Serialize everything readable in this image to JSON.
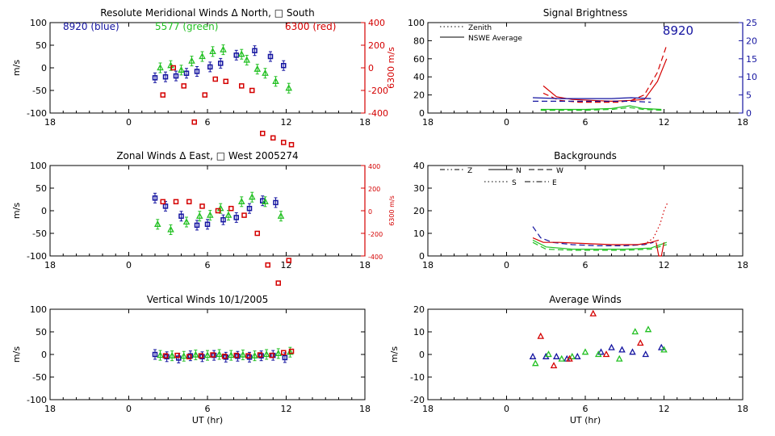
{
  "chart_data": [
    {
      "id": "merid",
      "type": "scatter",
      "title": "Resolute Meridional Winds Δ North, □ South",
      "ylabel": "m/s",
      "xlabel": "",
      "xlim": [
        18,
        42
      ],
      "ylim": [
        -100,
        100
      ],
      "xticks": [
        "18",
        "0",
        "6",
        "12",
        "18"
      ],
      "yticks": [
        "100",
        "50",
        "0",
        "-50",
        "-100"
      ],
      "right_axis": {
        "label": "6300 m/s",
        "color": "#d40000",
        "ylim": [
          -400,
          400
        ],
        "ticks": [
          "400",
          "200",
          "0",
          "-200",
          "-400"
        ]
      },
      "annotations": [
        {
          "text": "8920  (blue)",
          "color": "#1414a0"
        },
        {
          "text": "5577 (green)",
          "color": "#22c022"
        },
        {
          "text": "6300 (red)",
          "color": "#d40000"
        }
      ],
      "series": [
        {
          "color": "#1414a0",
          "marker": "square",
          "errorbars": true,
          "x": [
            26.0,
            26.8,
            27.6,
            28.4,
            29.2,
            30.2,
            31.0,
            32.2,
            33.6,
            34.8,
            35.8
          ],
          "y": [
            -22,
            -20,
            -18,
            -12,
            -8,
            2,
            10,
            28,
            38,
            25,
            5
          ]
        },
        {
          "color": "#22c022",
          "marker": "triangle",
          "errorbars": true,
          "x": [
            26.4,
            27.2,
            28.0,
            28.8,
            29.6,
            30.4,
            31.2,
            32.6,
            33.0,
            33.8,
            34.4,
            35.2,
            36.2
          ],
          "y": [
            0,
            5,
            -5,
            15,
            25,
            36,
            40,
            30,
            17,
            -3,
            -12,
            -30,
            -45
          ]
        },
        {
          "color": "#d40000",
          "marker": "square",
          "errorbars": false,
          "x": [
            26.6,
            27.4,
            28.2,
            29.0,
            29.8,
            30.6,
            31.4,
            32.6,
            33.4,
            34.2,
            35.0,
            35.8,
            36.4
          ],
          "y": [
            -60,
            0,
            -40,
            -120,
            -60,
            -25,
            -30,
            -40,
            -50,
            -145,
            -155,
            -165,
            -170
          ]
        }
      ]
    },
    {
      "id": "zonal",
      "type": "scatter",
      "title": "Zonal Winds Δ East, □ West 2005274",
      "ylabel": "m/s",
      "xlabel": "",
      "xlim": [
        18,
        42
      ],
      "ylim": [
        -100,
        100
      ],
      "xticks": [
        "18",
        "0",
        "6",
        "12",
        "18"
      ],
      "yticks": [
        "100",
        "50",
        "0",
        "-50",
        "-100"
      ],
      "right_axis": {
        "label": "6300 m/s",
        "color": "#d40000",
        "ylim": [
          -400,
          400
        ],
        "ticks": [
          "400",
          "200",
          "0",
          "-200",
          "-400"
        ]
      },
      "series": [
        {
          "color": "#1414a0",
          "marker": "square",
          "errorbars": true,
          "x": [
            26.0,
            26.8,
            28.0,
            29.2,
            30.0,
            31.2,
            32.2,
            33.2,
            34.2,
            35.2
          ],
          "y": [
            28,
            10,
            -12,
            -32,
            -30,
            -20,
            -15,
            5,
            22,
            18
          ]
        },
        {
          "color": "#22c022",
          "marker": "triangle",
          "errorbars": true,
          "x": [
            26.2,
            27.2,
            28.4,
            29.4,
            30.2,
            31.0,
            31.6,
            32.6,
            33.4,
            34.4,
            35.6
          ],
          "y": [
            -30,
            -42,
            -25,
            -12,
            -10,
            5,
            -10,
            20,
            30,
            20,
            -12
          ]
        },
        {
          "color": "#d40000",
          "marker": "square",
          "errorbars": false,
          "x": [
            26.6,
            27.6,
            28.6,
            29.6,
            30.8,
            31.8,
            32.8,
            33.8,
            34.6,
            35.4,
            36.2
          ],
          "y": [
            20,
            20,
            20,
            10,
            0,
            5,
            -10,
            -50,
            -120,
            -160,
            -110
          ]
        }
      ]
    },
    {
      "id": "vert",
      "type": "scatter",
      "title": "Vertical Winds 10/1/2005",
      "ylabel": "m/s",
      "xlabel": "UT (hr)",
      "xlim": [
        18,
        42
      ],
      "ylim": [
        -100,
        100
      ],
      "xticks": [
        "18",
        "0",
        "6",
        "12",
        "18"
      ],
      "yticks": [
        "100",
        "50",
        "0",
        "-50",
        "-100"
      ],
      "series": [
        {
          "color": "#1414a0",
          "marker": "square",
          "errorbars": true,
          "x": [
            26.0,
            26.9,
            27.8,
            28.7,
            29.6,
            30.5,
            31.4,
            32.3,
            33.2,
            34.1,
            35.0,
            35.9
          ],
          "y": [
            0,
            -5,
            -8,
            -3,
            -5,
            -2,
            -6,
            -4,
            -6,
            -3,
            -2,
            -7
          ]
        },
        {
          "color": "#22c022",
          "marker": "triangle",
          "errorbars": true,
          "x": [
            26.4,
            27.3,
            28.2,
            29.1,
            30.0,
            30.9,
            31.8,
            32.7,
            33.6,
            34.5,
            35.4,
            36.3
          ],
          "y": [
            -2,
            -3,
            -4,
            -1,
            -2,
            0,
            -2,
            -1,
            -3,
            0,
            2,
            5
          ]
        },
        {
          "color": "#d40000",
          "marker": "square",
          "errorbars": false,
          "x": [
            26.8,
            27.7,
            28.6,
            29.5,
            30.4,
            31.3,
            32.2,
            33.1,
            34.0,
            34.9,
            35.8,
            36.4
          ],
          "y": [
            -3,
            -2,
            -5,
            -3,
            -1,
            -4,
            -2,
            -3,
            -1,
            -2,
            4,
            7
          ]
        }
      ]
    },
    {
      "id": "bright",
      "type": "line",
      "title": "Signal Brightness",
      "ylabel": "",
      "xlabel": "",
      "xlim": [
        18,
        42
      ],
      "ylim": [
        0,
        100
      ],
      "xticks": [
        "18",
        "0",
        "6",
        "12",
        "18"
      ],
      "yticks": [
        "100",
        "80",
        "60",
        "40",
        "20",
        "0"
      ],
      "right_axis": {
        "label": "",
        "color": "#1414a0",
        "ylim": [
          0,
          25
        ],
        "ticks": [
          "25",
          "20",
          "15",
          "10",
          "5",
          "0"
        ]
      },
      "annotations": [
        {
          "text": "8920",
          "color": "#1414a0"
        }
      ],
      "legend": [
        {
          "label": "Zenith",
          "style": "dotted"
        },
        {
          "label": "NSWE Average",
          "style": "solid"
        }
      ],
      "series": [
        {
          "color": "#d40000",
          "style": "solid",
          "x": [
            26.8,
            27.8,
            29.0,
            30.5,
            32.0,
            33.5,
            34.5,
            35.5,
            36.2
          ],
          "y": [
            30,
            18,
            15,
            14,
            13,
            14,
            15,
            35,
            60
          ]
        },
        {
          "color": "#d40000",
          "style": "dashed",
          "x": [
            26.8,
            28.0,
            29.5,
            31.0,
            32.5,
            33.5,
            34.5,
            35.5,
            36.2
          ],
          "y": [
            22,
            14,
            12,
            12,
            12,
            14,
            20,
            45,
            75
          ]
        },
        {
          "color": "#1414a0",
          "style": "solid",
          "x": [
            26.0,
            28.0,
            30.0,
            32.0,
            33.5,
            35.0
          ],
          "y": [
            17,
            16,
            16,
            16,
            17,
            16
          ]
        },
        {
          "color": "#1414a0",
          "style": "dashed",
          "x": [
            26.0,
            28.0,
            30.0,
            32.0,
            33.5,
            35.0
          ],
          "y": [
            13,
            13,
            13,
            13,
            13,
            12
          ]
        },
        {
          "color": "#22c022",
          "style": "solid",
          "x": [
            26.6,
            28.0,
            30.0,
            32.0,
            33.4,
            34.4,
            35.8
          ],
          "y": [
            4,
            4,
            4,
            5,
            8,
            5,
            4
          ]
        },
        {
          "color": "#22c022",
          "style": "dashed",
          "x": [
            26.6,
            28.0,
            30.0,
            32.0,
            33.4,
            34.4,
            35.8
          ],
          "y": [
            3,
            3,
            3,
            4,
            6,
            4,
            3
          ]
        }
      ]
    },
    {
      "id": "bkg",
      "type": "line",
      "title": "Backgrounds",
      "ylabel": "",
      "xlabel": "",
      "xlim": [
        18,
        42
      ],
      "ylim": [
        0,
        40
      ],
      "xticks": [
        "18",
        "0",
        "6",
        "12",
        "18"
      ],
      "yticks": [
        "40",
        "30",
        "20",
        "10",
        "0"
      ],
      "legend": [
        {
          "label": "Z",
          "style": "dashdotdot"
        },
        {
          "label": "N",
          "style": "solid"
        },
        {
          "label": "W",
          "style": "dashed"
        },
        {
          "label": "S",
          "style": "dotted"
        },
        {
          "label": "E",
          "style": "dashdot"
        }
      ],
      "series": [
        {
          "color": "#1414a0",
          "style": "dashed",
          "x": [
            26.0,
            26.6,
            27.5,
            29.0,
            31.0,
            33.0,
            34.5,
            35.2
          ],
          "y": [
            13,
            8,
            6,
            5,
            4.5,
            4.5,
            5,
            6
          ]
        },
        {
          "color": "#d40000",
          "style": "solid",
          "x": [
            26.0,
            26.8,
            28.0,
            30.0,
            32.0,
            34.0,
            35.0,
            35.6
          ],
          "y": [
            8,
            6,
            6,
            5.5,
            5,
            5,
            6,
            7
          ]
        },
        {
          "color": "#d40000",
          "style": "dotted",
          "x": [
            34.5,
            35.2,
            35.7,
            36.0,
            36.3
          ],
          "y": [
            5,
            8,
            14,
            20,
            24
          ]
        },
        {
          "color": "#22c022",
          "style": "solid",
          "x": [
            26.0,
            27.0,
            29.0,
            31.0,
            33.0,
            35.0,
            36.2
          ],
          "y": [
            7,
            4,
            3,
            3,
            3,
            3.5,
            6
          ]
        },
        {
          "color": "#22c022",
          "style": "dashed",
          "x": [
            26.0,
            27.0,
            29.0,
            31.0,
            33.0,
            35.0,
            36.2
          ],
          "y": [
            6,
            3,
            2.5,
            2.5,
            2.5,
            3,
            5
          ]
        },
        {
          "color": "#d40000",
          "style": "solid",
          "x": [
            35.4,
            35.6,
            35.8,
            36.0
          ],
          "y": [
            6,
            0,
            0,
            6
          ]
        }
      ]
    },
    {
      "id": "avg",
      "type": "scatter",
      "title": "Average Winds",
      "ylabel": "m/s",
      "xlabel": "UT (hr)",
      "xlim": [
        18,
        42
      ],
      "ylim": [
        -20,
        20
      ],
      "xticks": [
        "18",
        "0",
        "6",
        "12",
        "18"
      ],
      "yticks": [
        "20",
        "10",
        "0",
        "-10",
        "-20"
      ],
      "series": [
        {
          "color": "#1414a0",
          "marker": "triangle",
          "x": [
            26.0,
            27.0,
            27.8,
            28.6,
            29.4,
            31.2,
            32.0,
            32.8,
            33.6,
            34.6,
            35.8
          ],
          "y": [
            -1,
            -1,
            -1,
            -2,
            -1,
            1,
            3,
            2,
            1,
            0,
            3
          ]
        },
        {
          "color": "#22c022",
          "marker": "triangle",
          "x": [
            26.2,
            27.2,
            28.2,
            29.0,
            30.0,
            31.0,
            32.6,
            33.8,
            34.8,
            36.0
          ],
          "y": [
            -4,
            0,
            -2,
            -1,
            1,
            0,
            -2,
            10,
            11,
            2
          ]
        },
        {
          "color": "#d40000",
          "marker": "triangle",
          "x": [
            26.6,
            27.6,
            28.8,
            30.6,
            31.6,
            34.2
          ],
          "y": [
            8,
            -5,
            -2,
            18,
            0,
            5
          ]
        }
      ]
    }
  ]
}
